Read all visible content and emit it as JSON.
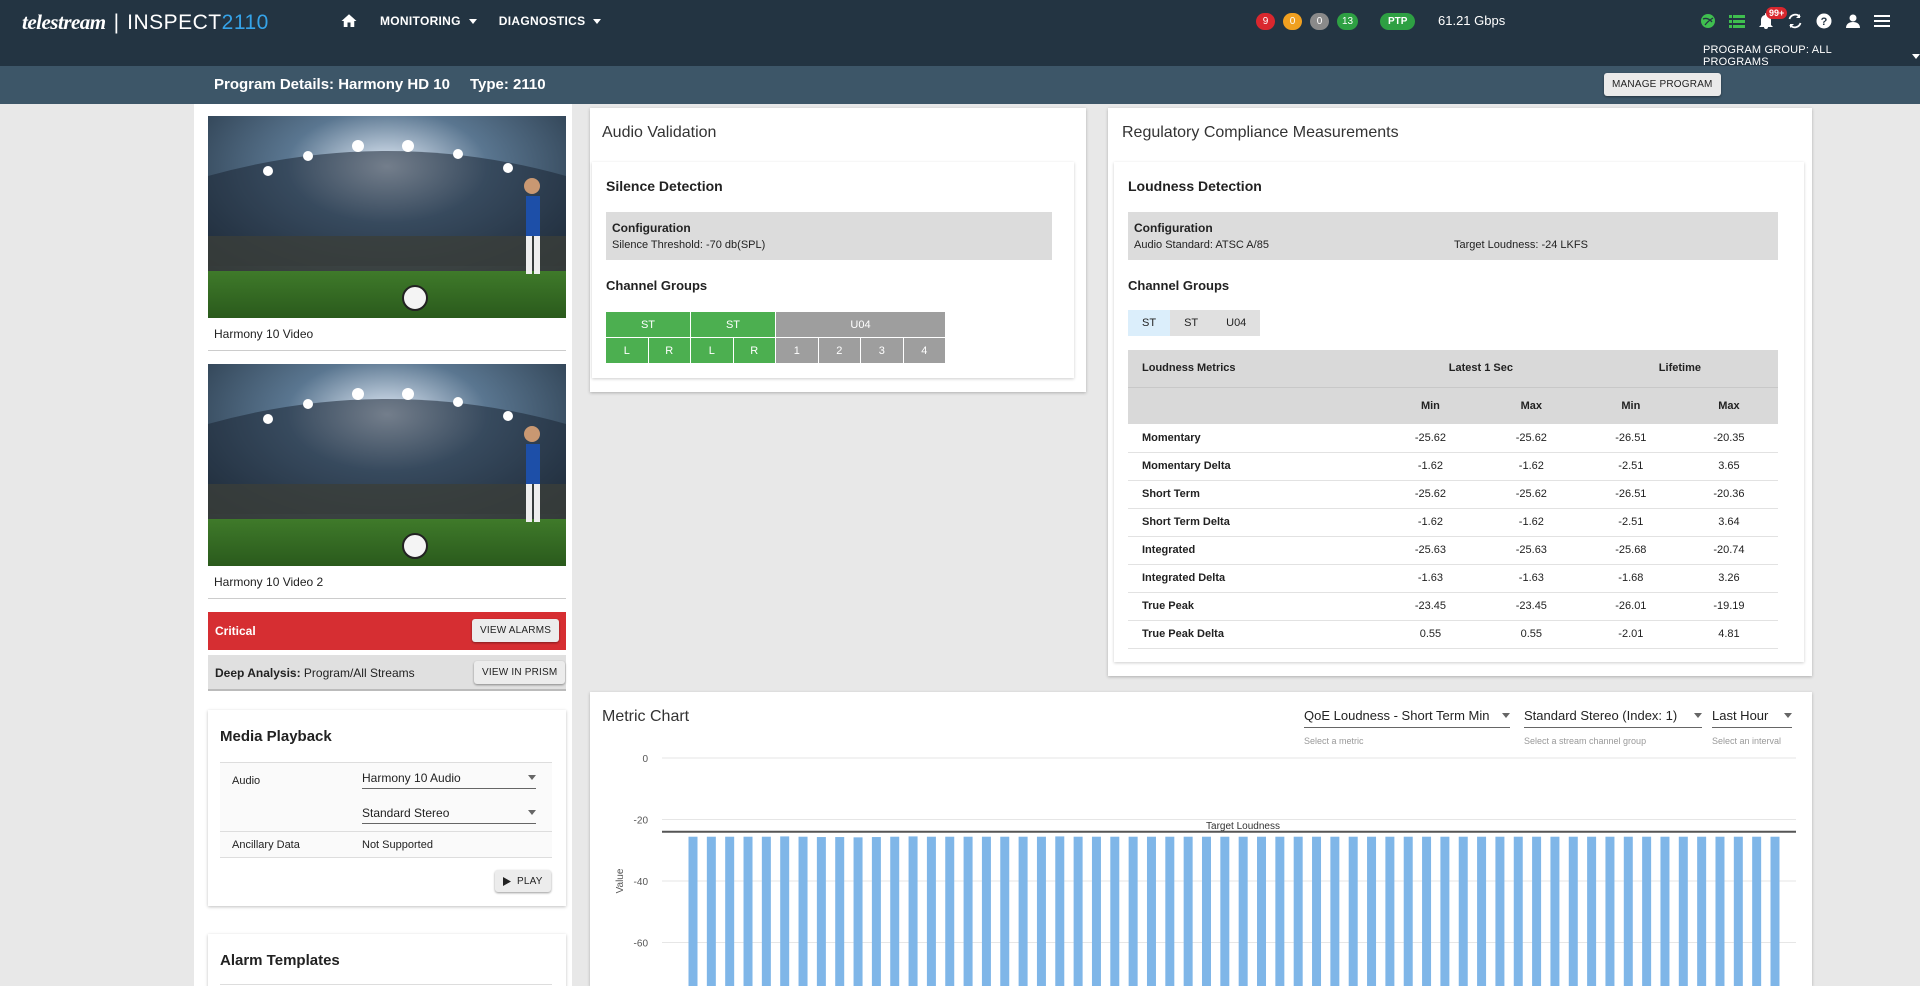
{
  "app": {
    "brand": "telestream",
    "product_prefix": "INSPECT",
    "product_suffix": "2110"
  },
  "nav": {
    "monitoring": "MONITORING",
    "diagnostics": "DIAGNOSTICS"
  },
  "status": {
    "counts": [
      {
        "value": "9",
        "color": "#d9272e"
      },
      {
        "value": "0",
        "color": "#f0a020"
      },
      {
        "value": "0",
        "color": "#8a8a8a"
      },
      {
        "value": "13",
        "color": "#2ea043"
      }
    ],
    "ptp": "PTP",
    "bandwidth": "61.21 Gbps",
    "notifications": "99+"
  },
  "program_group": "PROGRAM GROUP: ALL PROGRAMS",
  "subheader": {
    "program_details": "Program Details: Harmony HD 10",
    "type": "Type: 2110",
    "manage_button": "MANAGE PROGRAM"
  },
  "left": {
    "video1_caption": "Harmony 10 Video",
    "video2_caption": "Harmony 10 Video 2",
    "critical_label": "Critical",
    "view_alarms": "VIEW ALARMS",
    "deep_analysis_label": "Deep Analysis:",
    "deep_analysis_value": " Program/All Streams",
    "view_in_prism": "VIEW IN PRISM",
    "media_playback": {
      "title": "Media Playback",
      "audio_label": "Audio",
      "audio_value": "Harmony 10 Audio",
      "group_value": "Standard Stereo",
      "ancillary_label": "Ancillary Data",
      "ancillary_value": "Not Supported",
      "play": "PLAY"
    },
    "alarm_templates": "Alarm Templates"
  },
  "audio_validation": {
    "title": "Audio Validation",
    "silence_title": "Silence Detection",
    "config_title": "Configuration",
    "threshold": "Silence Threshold:  -70 db(SPL)",
    "channel_groups": "Channel Groups",
    "groups": [
      {
        "label": "ST",
        "status": "green",
        "channels": [
          "L",
          "R"
        ]
      },
      {
        "label": "ST",
        "status": "green",
        "channels": [
          "L",
          "R"
        ]
      },
      {
        "label": "U04",
        "status": "grey",
        "channels": [
          "1",
          "2",
          "3",
          "4"
        ]
      }
    ]
  },
  "regulatory": {
    "title": "Regulatory Compliance Measurements",
    "loudness_title": "Loudness Detection",
    "config_title": "Configuration",
    "audio_standard": "Audio Standard:  ATSC A/85",
    "target_loudness": "Target Loudness:  -24 LKFS",
    "channel_groups": "Channel Groups",
    "tabs": [
      "ST",
      "ST",
      "U04"
    ],
    "table": {
      "col_metrics": "Loudness Metrics",
      "col_latest": "Latest 1 Sec",
      "col_lifetime": "Lifetime",
      "min": "Min",
      "max": "Max",
      "rows": [
        {
          "name": "Momentary",
          "v": [
            "-25.62",
            "-25.62",
            "-26.51",
            "-20.35"
          ]
        },
        {
          "name": "Momentary Delta",
          "v": [
            "-1.62",
            "-1.62",
            "-2.51",
            "3.65"
          ]
        },
        {
          "name": "Short Term",
          "v": [
            "-25.62",
            "-25.62",
            "-26.51",
            "-20.36"
          ]
        },
        {
          "name": "Short Term Delta",
          "v": [
            "-1.62",
            "-1.62",
            "-2.51",
            "3.64"
          ]
        },
        {
          "name": "Integrated",
          "v": [
            "-25.63",
            "-25.63",
            "-25.68",
            "-20.74"
          ]
        },
        {
          "name": "Integrated Delta",
          "v": [
            "-1.63",
            "-1.63",
            "-1.68",
            "3.26"
          ]
        },
        {
          "name": "True Peak",
          "v": [
            "-23.45",
            "-23.45",
            "-26.01",
            "-19.19"
          ]
        },
        {
          "name": "True Peak Delta",
          "v": [
            "0.55",
            "0.55",
            "-2.01",
            "4.81"
          ]
        }
      ]
    }
  },
  "metric_chart": {
    "title": "Metric Chart",
    "metric_select": "QoE Loudness - Short Term Min",
    "metric_helper": "Select a metric",
    "group_select": "Standard Stereo (Index: 1)",
    "group_helper": "Select a stream channel group",
    "interval_select": "Last Hour",
    "interval_helper": "Select an interval"
  },
  "chart_data": {
    "type": "bar",
    "ylabel": "Value",
    "yticks": [
      "0",
      "-20",
      "-40",
      "-60"
    ],
    "ylim": [
      -60,
      0
    ],
    "target_line": {
      "label": "Target Loudness",
      "value": -24
    },
    "bar_color": "#7fb6e8",
    "values": [
      -25.6,
      -25.6,
      -25.6,
      -25.6,
      -25.6,
      -25.5,
      -25.6,
      -25.7,
      -25.7,
      -25.8,
      -25.7,
      -25.6,
      -25.5,
      -25.6,
      -25.6,
      -25.6,
      -25.6,
      -25.6,
      -25.6,
      -25.6,
      -25.5,
      -25.6,
      -25.6,
      -25.6,
      -25.6,
      -25.6,
      -25.6,
      -25.6,
      -25.6,
      -25.6,
      -25.6,
      -25.6,
      -25.6,
      -25.6,
      -25.6,
      -25.6,
      -25.6,
      -25.6,
      -25.6,
      -25.6,
      -25.6,
      -25.6,
      -25.6,
      -25.6,
      -25.6,
      -25.6,
      -25.6,
      -25.6,
      -25.6,
      -25.6,
      -25.6,
      -25.6,
      -25.6,
      -25.6,
      -25.6,
      -25.6,
      -25.6,
      -25.6,
      -25.6,
      -25.6
    ]
  }
}
